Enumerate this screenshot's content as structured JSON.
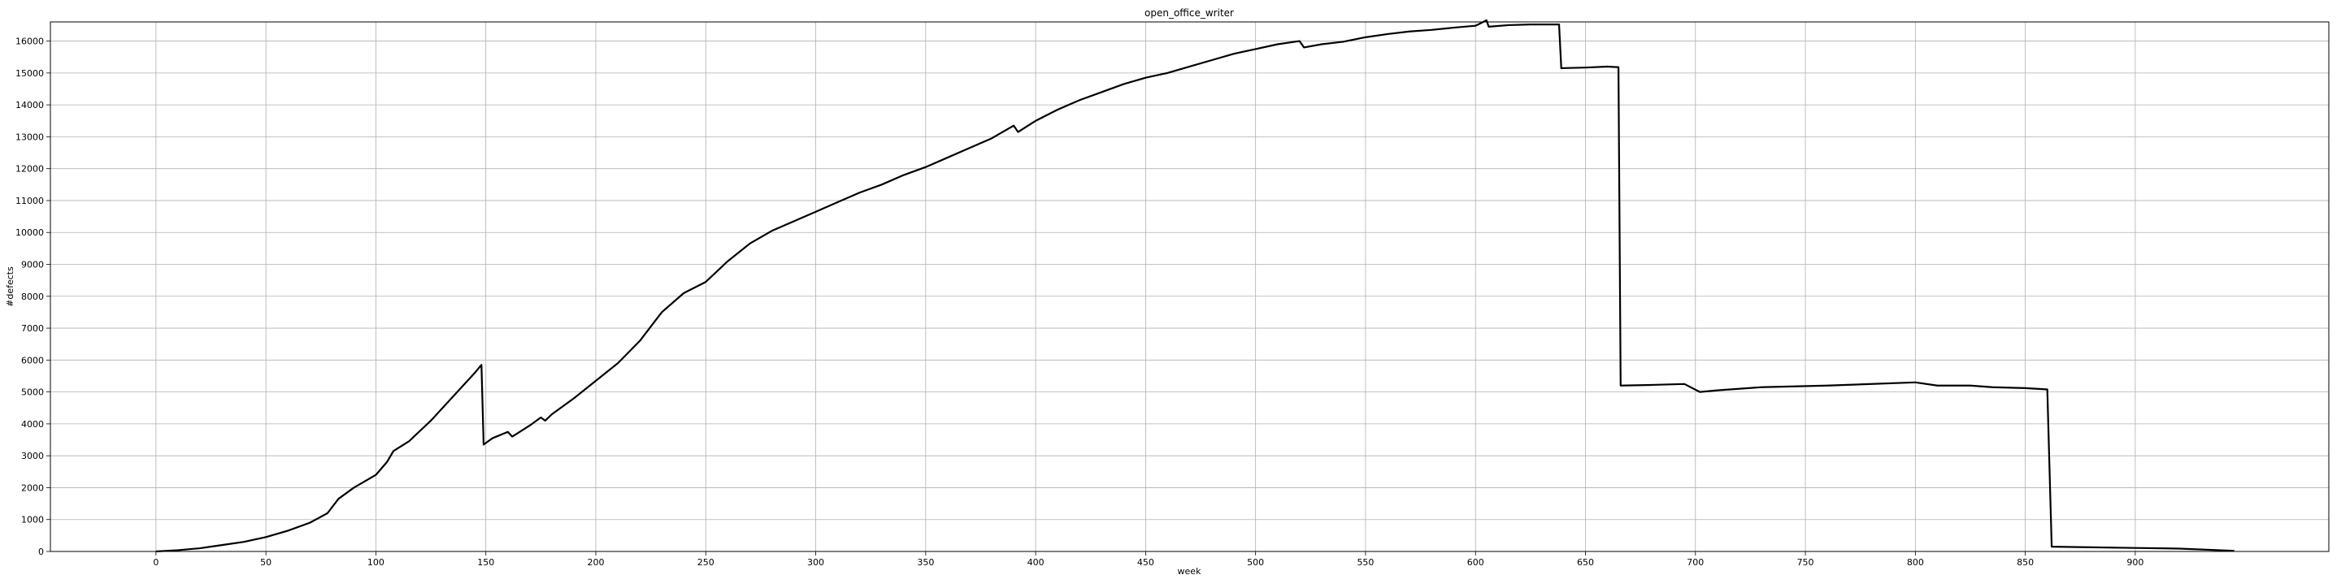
{
  "chart_data": {
    "type": "line",
    "title": "open_office_writer",
    "xlabel": "week",
    "ylabel": "#defects",
    "xlim": [
      -48,
      988
    ],
    "ylim": [
      0,
      16600
    ],
    "grid": true,
    "xticks": [
      0,
      50,
      100,
      150,
      200,
      250,
      300,
      350,
      400,
      450,
      500,
      550,
      600,
      650,
      700,
      750,
      800,
      850,
      900
    ],
    "yticks": [
      0,
      1000,
      2000,
      3000,
      4000,
      5000,
      6000,
      7000,
      8000,
      9000,
      10000,
      11000,
      12000,
      13000,
      14000,
      15000,
      16000
    ],
    "series": [
      {
        "color": "#000000",
        "points": [
          [
            0,
            0
          ],
          [
            10,
            40
          ],
          [
            20,
            100
          ],
          [
            30,
            200
          ],
          [
            40,
            300
          ],
          [
            50,
            450
          ],
          [
            60,
            650
          ],
          [
            70,
            900
          ],
          [
            78,
            1200
          ],
          [
            83,
            1650
          ],
          [
            90,
            2000
          ],
          [
            100,
            2400
          ],
          [
            105,
            2800
          ],
          [
            108,
            3150
          ],
          [
            115,
            3450
          ],
          [
            125,
            4100
          ],
          [
            135,
            4850
          ],
          [
            145,
            5600
          ],
          [
            148,
            5850
          ],
          [
            149,
            3350
          ],
          [
            153,
            3550
          ],
          [
            160,
            3750
          ],
          [
            162,
            3600
          ],
          [
            170,
            3950
          ],
          [
            175,
            4200
          ],
          [
            177,
            4100
          ],
          [
            180,
            4300
          ],
          [
            190,
            4800
          ],
          [
            200,
            5350
          ],
          [
            210,
            5900
          ],
          [
            220,
            6600
          ],
          [
            230,
            7500
          ],
          [
            240,
            8100
          ],
          [
            250,
            8450
          ],
          [
            260,
            9100
          ],
          [
            270,
            9650
          ],
          [
            280,
            10050
          ],
          [
            290,
            10350
          ],
          [
            300,
            10650
          ],
          [
            310,
            10950
          ],
          [
            320,
            11250
          ],
          [
            330,
            11500
          ],
          [
            340,
            11800
          ],
          [
            350,
            12050
          ],
          [
            360,
            12350
          ],
          [
            370,
            12650
          ],
          [
            380,
            12950
          ],
          [
            390,
            13350
          ],
          [
            392,
            13150
          ],
          [
            400,
            13500
          ],
          [
            410,
            13850
          ],
          [
            420,
            14150
          ],
          [
            430,
            14400
          ],
          [
            440,
            14650
          ],
          [
            450,
            14850
          ],
          [
            460,
            15000
          ],
          [
            470,
            15200
          ],
          [
            480,
            15400
          ],
          [
            490,
            15600
          ],
          [
            500,
            15750
          ],
          [
            510,
            15900
          ],
          [
            520,
            16000
          ],
          [
            522,
            15800
          ],
          [
            530,
            15900
          ],
          [
            540,
            15980
          ],
          [
            550,
            16120
          ],
          [
            560,
            16220
          ],
          [
            570,
            16300
          ],
          [
            580,
            16350
          ],
          [
            590,
            16420
          ],
          [
            600,
            16480
          ],
          [
            605,
            16650
          ],
          [
            606,
            16450
          ],
          [
            615,
            16500
          ],
          [
            625,
            16520
          ],
          [
            638,
            16520
          ],
          [
            639,
            15150
          ],
          [
            650,
            15170
          ],
          [
            660,
            15200
          ],
          [
            665,
            15180
          ],
          [
            666,
            5200
          ],
          [
            680,
            5220
          ],
          [
            695,
            5250
          ],
          [
            702,
            5000
          ],
          [
            710,
            5050
          ],
          [
            730,
            5150
          ],
          [
            760,
            5200
          ],
          [
            800,
            5300
          ],
          [
            810,
            5200
          ],
          [
            825,
            5200
          ],
          [
            835,
            5150
          ],
          [
            850,
            5120
          ],
          [
            860,
            5080
          ],
          [
            862,
            150
          ],
          [
            880,
            130
          ],
          [
            900,
            110
          ],
          [
            920,
            90
          ],
          [
            945,
            20
          ]
        ]
      }
    ]
  }
}
